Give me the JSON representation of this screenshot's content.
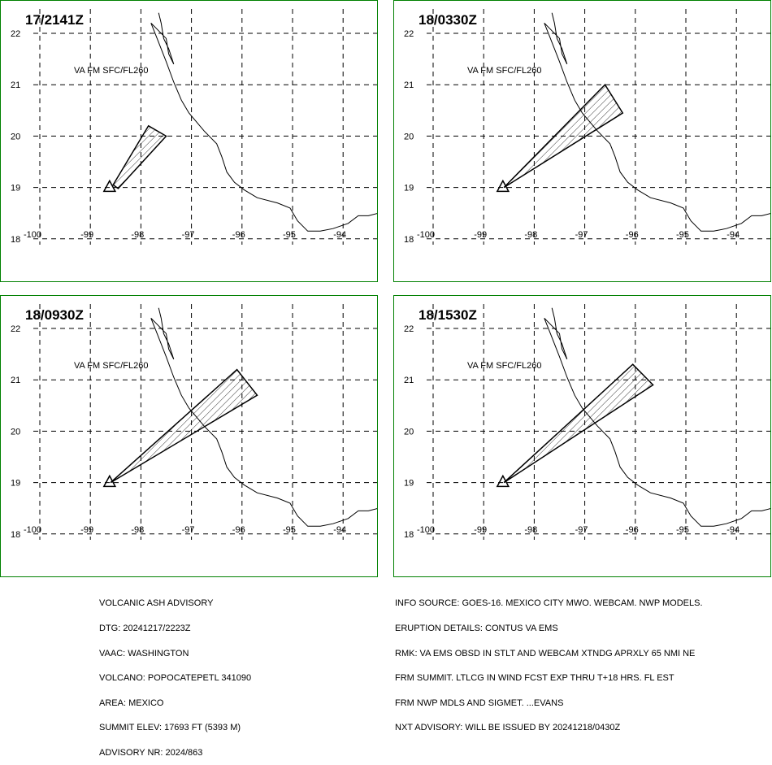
{
  "panels": [
    {
      "time": "17/2141Z",
      "label": "VA FM SFC/FL260",
      "plume": [
        [
          -98.55,
          19.05
        ],
        [
          -97.85,
          20.2
        ],
        [
          -97.5,
          20.0
        ],
        [
          -98.45,
          18.98
        ]
      ]
    },
    {
      "time": "18/0330Z",
      "label": "VA FM SFC/FL260",
      "plume": [
        [
          -98.6,
          19.0
        ],
        [
          -96.6,
          21.0
        ],
        [
          -96.25,
          20.45
        ]
      ]
    },
    {
      "time": "18/0930Z",
      "label": "VA FM SFC/FL260",
      "plume": [
        [
          -98.6,
          19.0
        ],
        [
          -96.1,
          21.2
        ],
        [
          -95.7,
          20.7
        ]
      ]
    },
    {
      "time": "18/1530Z",
      "label": "VA FM SFC/FL260",
      "plume": [
        [
          -98.6,
          19.0
        ],
        [
          -96.05,
          21.3
        ],
        [
          -95.65,
          20.9
        ]
      ]
    }
  ],
  "grid": {
    "lat_labels": [
      "22",
      "21",
      "20",
      "19",
      "18"
    ],
    "lon_labels": [
      "-100",
      "-99",
      "-98",
      "-97",
      "-96",
      "-95",
      "-94"
    ]
  },
  "volcano": {
    "lon": -98.62,
    "lat": 19.02
  },
  "advisory_left": [
    "VOLCANIC ASH ADVISORY",
    "DTG: 20241217/2223Z",
    "VAAC: WASHINGTON",
    "VOLCANO: POPOCATEPETL 341090",
    "AREA: MEXICO",
    "SUMMIT ELEV: 17693 FT (5393 M)",
    "ADVISORY NR: 2024/863"
  ],
  "advisory_right": [
    "INFO SOURCE: GOES-16. MEXICO CITY MWO. WEBCAM. NWP MODELS.",
    "ERUPTION DETAILS: CONTUS VA EMS",
    "RMK: VA EMS OBSD IN STLT AND WEBCAM XTNDG APRXLY 65 NMI NE",
    "FRM SUMMIT. LTLCG IN WIND FCST EXP THRU T+18 HRS. FL EST",
    "FRM NWP MDLS AND SIGMET. ...EVANS",
    "NXT ADVISORY: WILL BE ISSUED BY 20241218/0430Z"
  ],
  "colors": {
    "panel_border": "#008000",
    "lines": "#000000"
  }
}
